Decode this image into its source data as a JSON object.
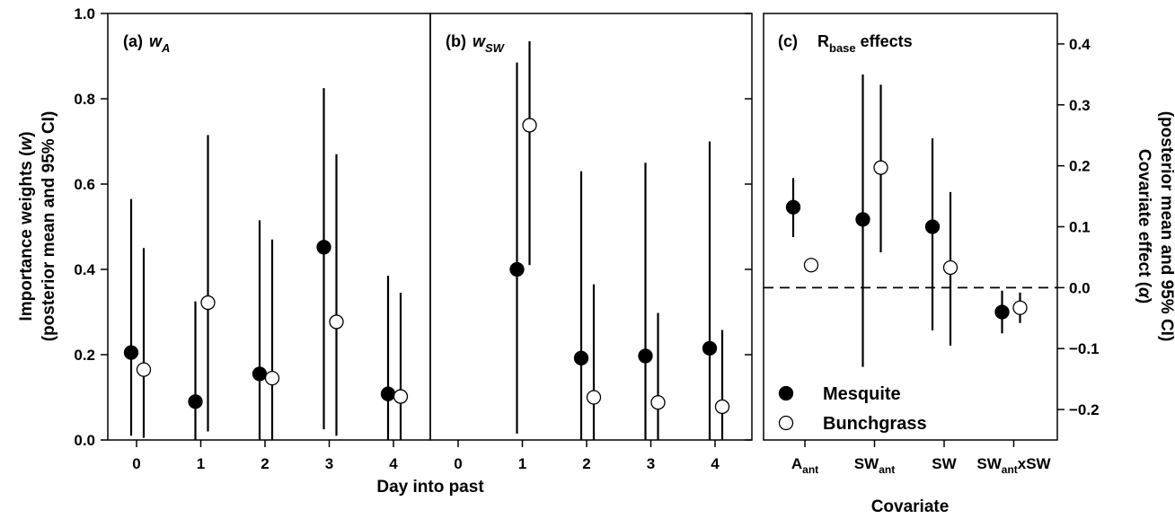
{
  "x_axis_title": "Day into past",
  "y_axis_left_title_line1_pre": "Importance weights (",
  "y_axis_left_title_line1_italic": "w",
  "y_axis_left_title_line1_post": ")",
  "y_axis_left_title_line2": "(posterior mean and 95% CI)",
  "y_axis_right_title_line1_pre": "Covariate effect (",
  "y_axis_right_title_line1_italic": "α",
  "y_axis_right_title_line1_post": ")",
  "y_axis_right_title_line2": "(posterior mean and 95% CI)",
  "x_axis_title_c": "Covariate",
  "legend": {
    "mesquite": "Mesquite",
    "bunchgrass": "Bunchgrass",
    "mesquite_color": "#000000",
    "bunchgrass_color": "#ffffff"
  },
  "chart_data": [
    {
      "panel": "a",
      "type": "scatter",
      "title_prefix": "(a)",
      "title_main": "w",
      "title_sub": "A",
      "x": [
        0,
        1,
        2,
        3,
        4
      ],
      "x_ticks": [
        "0",
        "1",
        "2",
        "3",
        "4"
      ],
      "ylim": [
        0,
        1.0
      ],
      "y_ticks": [
        "0.0",
        "0.2",
        "0.4",
        "0.6",
        "0.8",
        "1.0"
      ],
      "series": [
        {
          "name": "Mesquite",
          "mean": [
            0.205,
            0.09,
            0.155,
            0.452,
            0.108
          ],
          "lower": [
            0.01,
            0.0,
            0.0,
            0.025,
            0.0
          ],
          "upper": [
            0.565,
            0.325,
            0.515,
            0.825,
            0.385
          ]
        },
        {
          "name": "Bunchgrass",
          "mean": [
            0.165,
            0.322,
            0.145,
            0.277,
            0.102
          ],
          "lower": [
            0.005,
            0.02,
            0.0,
            0.01,
            0.0
          ],
          "upper": [
            0.45,
            0.715,
            0.47,
            0.67,
            0.345
          ]
        }
      ]
    },
    {
      "panel": "b",
      "type": "scatter",
      "title_prefix": "(b)",
      "title_main": "w",
      "title_sub": "SW",
      "x": [
        0,
        1,
        2,
        3,
        4
      ],
      "x_ticks": [
        "0",
        "1",
        "2",
        "3",
        "4"
      ],
      "ylim": [
        0,
        1.0
      ],
      "series": [
        {
          "name": "Mesquite",
          "mean": [
            null,
            0.4,
            0.192,
            0.197,
            0.215
          ],
          "lower": [
            null,
            0.015,
            0.0,
            0.0,
            0.0
          ],
          "upper": [
            null,
            0.885,
            0.63,
            0.65,
            0.7
          ]
        },
        {
          "name": "Bunchgrass",
          "mean": [
            null,
            0.738,
            0.1,
            0.088,
            0.078
          ],
          "lower": [
            null,
            0.41,
            0.0,
            0.0,
            0.0
          ],
          "upper": [
            null,
            0.935,
            0.365,
            0.298,
            0.258
          ]
        }
      ]
    },
    {
      "panel": "c",
      "type": "scatter",
      "title_prefix": "(c)",
      "title_main": "R",
      "title_sub": "base",
      "title_suffix": "effects",
      "categories": [
        {
          "main": "A",
          "sub": "ant",
          "tail": ""
        },
        {
          "main": "SW",
          "sub": "ant",
          "tail": ""
        },
        {
          "main": "SW",
          "sub": "",
          "tail": ""
        },
        {
          "main": "SW",
          "sub": "ant",
          "tail": "xSW"
        }
      ],
      "ylim": [
        -0.25,
        0.45
      ],
      "y_ticks": [
        "−0.2",
        "−0.1",
        "0.0",
        "0.1",
        "0.2",
        "0.3",
        "0.4"
      ],
      "y_tick_values": [
        -0.2,
        -0.1,
        0.0,
        0.1,
        0.2,
        0.3,
        0.4
      ],
      "reference_line": 0.0,
      "series": [
        {
          "name": "Mesquite",
          "mean": [
            0.132,
            0.112,
            0.1,
            -0.04
          ],
          "lower": [
            0.083,
            -0.13,
            -0.07,
            -0.075
          ],
          "upper": [
            0.18,
            0.35,
            0.245,
            -0.005
          ]
        },
        {
          "name": "Bunchgrass",
          "mean": [
            0.037,
            0.197,
            0.033,
            -0.033
          ],
          "lower": [
            0.037,
            0.058,
            -0.095,
            -0.058
          ],
          "upper": [
            0.037,
            0.333,
            0.157,
            -0.008
          ]
        }
      ]
    }
  ]
}
